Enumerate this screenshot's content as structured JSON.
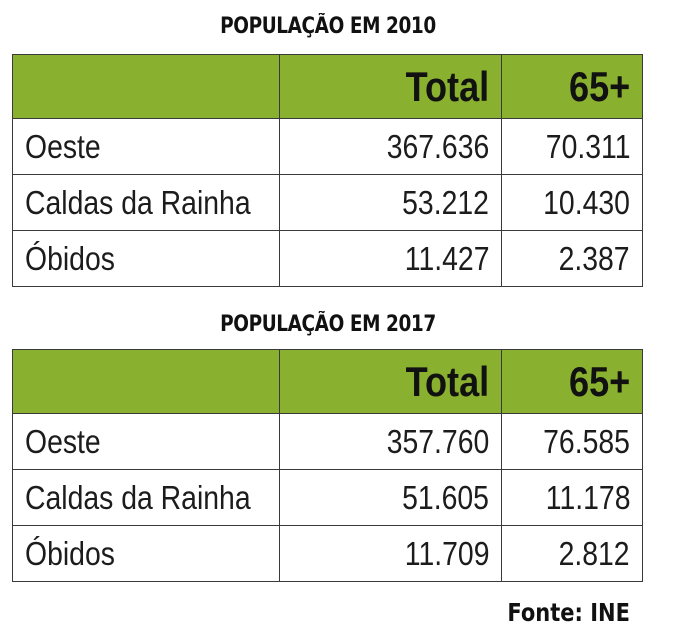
{
  "tables": [
    {
      "title": "POPULAÇÃO EM 2010",
      "columns": [
        "",
        "Total",
        "65+"
      ],
      "rows": [
        {
          "name": "Oeste",
          "total": "367.636",
          "age65": "70.311"
        },
        {
          "name": "Caldas da Rainha",
          "total": "53.212",
          "age65": "10.430"
        },
        {
          "name": "Óbidos",
          "total": "11.427",
          "age65": "2.387"
        }
      ]
    },
    {
      "title": "POPULAÇÃO EM 2017",
      "columns": [
        "",
        "Total",
        "65+"
      ],
      "rows": [
        {
          "name": "Oeste",
          "total": "357.760",
          "age65": "76.585"
        },
        {
          "name": "Caldas da Rainha",
          "total": "51.605",
          "age65": "11.178"
        },
        {
          "name": "Óbidos",
          "total": "11.709",
          "age65": "2.812"
        }
      ]
    }
  ],
  "source": "Fonte: INE",
  "colors": {
    "header_green": "#89b02f",
    "border": "#3a3a3a",
    "text": "#1a1a1a"
  }
}
